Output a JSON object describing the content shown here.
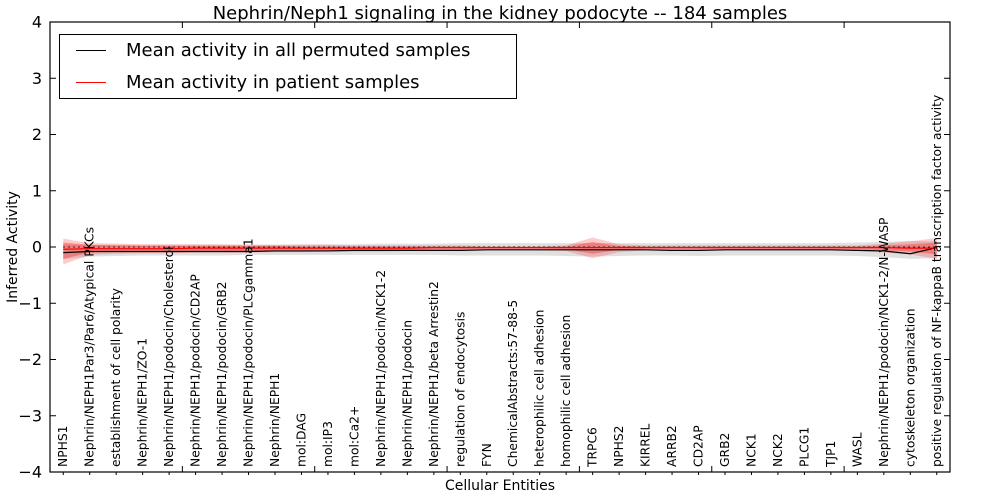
{
  "figure": {
    "title": "Nephrin/Neph1 signaling in the kidney podocyte -- 184 samples",
    "xlabel": "Cellular Entities",
    "ylabel": "Inferred Activity"
  },
  "legend": {
    "items": [
      {
        "label": "Mean activity in all permuted samples",
        "color": "#000000"
      },
      {
        "label": "Mean activity in patient samples",
        "color": "#ff0000"
      }
    ]
  },
  "chart_data": {
    "type": "line",
    "title": "Nephrin/Neph1 signaling in the kidney podocyte -- 184 samples",
    "xlabel": "Cellular Entities",
    "ylabel": "Inferred Activity",
    "ylim": [
      -4,
      4
    ],
    "yticks": [
      4,
      3,
      2,
      1,
      0,
      -1,
      -2,
      -3,
      -4
    ],
    "xticks_major": [
      0,
      5,
      10,
      15,
      20,
      25,
      30
    ],
    "grid": false,
    "legend_position": "upper left",
    "zero_line": 0,
    "zero_line_style": "dotted",
    "categories": [
      "NPHS1",
      "Nephrin/NEPH1Par3/Par6/Atypical PKCs",
      "establishment of cell polarity",
      "Nephrin/NEPH1/ZO-1",
      "Nephrin/NEPH1/podocin/Cholesterol",
      "Nephrin/NEPH1/podocin/CD2AP",
      "Nephrin/NEPH1/podocin/GRB2",
      "Nephrin/NEPH1/podocin/PLCgamma1",
      "Nephrin/NEPH1",
      "mol:DAG",
      "mol:IP3",
      "mol:Ca2+",
      "Nephrin/NEPH1/podocin/NCK1-2",
      "Nephrin/NEPH1/podocin",
      "Nephrin/NEPH1/beta Arrestin2",
      "regulation of endocytosis",
      "FYN",
      "ChemicalAbstracts:57-88-5",
      "heterophilic cell adhesion",
      "homophilic cell adhesion",
      "TRPC6",
      "NPHS2",
      "KIRREL",
      "ARRB2",
      "CD2AP",
      "GRB2",
      "NCK1",
      "NCK2",
      "PLCG1",
      "TJP1",
      "WASL",
      "Nephrin/NEPH1/podocin/NCK1-2/N-WASP",
      "cytoskeleton organization",
      "positive regulation of NF-kappaB transcription factor activity"
    ],
    "series": [
      {
        "name": "Mean activity in all permuted samples",
        "color": "#000000",
        "values": [
          -0.1,
          -0.08,
          -0.08,
          -0.08,
          -0.08,
          -0.08,
          -0.08,
          -0.08,
          -0.07,
          -0.07,
          -0.07,
          -0.06,
          -0.06,
          -0.06,
          -0.06,
          -0.06,
          -0.05,
          -0.05,
          -0.05,
          -0.05,
          -0.05,
          -0.05,
          -0.05,
          -0.06,
          -0.06,
          -0.05,
          -0.05,
          -0.05,
          -0.05,
          -0.05,
          -0.06,
          -0.07,
          -0.12,
          -0.01
        ]
      },
      {
        "name": "Mean activity in patient samples",
        "color": "#ff0000",
        "values": [
          -0.04,
          -0.03,
          -0.03,
          -0.03,
          -0.03,
          -0.02,
          -0.02,
          -0.02,
          -0.02,
          -0.02,
          -0.02,
          -0.02,
          -0.02,
          -0.02,
          -0.01,
          -0.01,
          -0.01,
          -0.01,
          -0.01,
          -0.01,
          -0.01,
          -0.01,
          -0.01,
          -0.01,
          -0.01,
          -0.01,
          -0.01,
          -0.01,
          -0.01,
          -0.01,
          -0.01,
          -0.01,
          -0.02,
          -0.02
        ]
      }
    ],
    "bands": [
      {
        "name": "permuted-samples-range",
        "color": "#bbbbbb",
        "opacity": 0.45,
        "upper": [
          0.05,
          0.04,
          0.04,
          0.04,
          0.04,
          0.04,
          0.04,
          0.04,
          0.04,
          0.05,
          0.05,
          0.05,
          0.06,
          0.06,
          0.06,
          0.07,
          0.07,
          0.07,
          0.07,
          0.07,
          0.07,
          0.07,
          0.07,
          0.07,
          0.07,
          0.07,
          0.07,
          0.07,
          0.07,
          0.07,
          0.08,
          0.09,
          0.11,
          0.1
        ],
        "lower": [
          -0.22,
          -0.17,
          -0.16,
          -0.15,
          -0.15,
          -0.15,
          -0.15,
          -0.14,
          -0.14,
          -0.14,
          -0.14,
          -0.14,
          -0.14,
          -0.14,
          -0.14,
          -0.15,
          -0.15,
          -0.15,
          -0.15,
          -0.16,
          -0.17,
          -0.16,
          -0.15,
          -0.15,
          -0.16,
          -0.15,
          -0.15,
          -0.15,
          -0.15,
          -0.15,
          -0.16,
          -0.18,
          -0.21,
          -0.2
        ]
      },
      {
        "name": "patient-samples-range-outer",
        "color": "#ff0000",
        "opacity": 0.2,
        "upper": [
          0.15,
          0.07,
          0.06,
          0.05,
          0.05,
          0.05,
          0.05,
          0.04,
          0.04,
          0.04,
          0.04,
          0.03,
          0.03,
          0.03,
          0.03,
          0.03,
          0.02,
          0.02,
          0.02,
          0.03,
          0.17,
          0.05,
          0.03,
          0.03,
          0.03,
          0.03,
          0.03,
          0.03,
          0.03,
          0.03,
          0.03,
          0.06,
          0.1,
          0.16
        ],
        "lower": [
          -0.31,
          -0.14,
          -0.12,
          -0.11,
          -0.11,
          -0.1,
          -0.1,
          -0.1,
          -0.09,
          -0.09,
          -0.08,
          -0.08,
          -0.08,
          -0.07,
          -0.07,
          -0.07,
          -0.06,
          -0.06,
          -0.06,
          -0.07,
          -0.2,
          -0.09,
          -0.06,
          -0.06,
          -0.06,
          -0.06,
          -0.06,
          -0.06,
          -0.06,
          -0.06,
          -0.07,
          -0.1,
          -0.13,
          -0.21
        ]
      },
      {
        "name": "patient-samples-range-inner",
        "color": "#ff0000",
        "opacity": 0.3,
        "upper": [
          0.08,
          0.04,
          0.03,
          0.02,
          0.02,
          0.02,
          0.02,
          0.02,
          0.02,
          0.01,
          0.01,
          0.01,
          0.01,
          0.01,
          0.01,
          0.01,
          0.0,
          0.0,
          0.0,
          0.01,
          0.09,
          0.02,
          0.01,
          0.01,
          0.01,
          0.01,
          0.01,
          0.01,
          0.01,
          0.01,
          0.01,
          0.03,
          0.05,
          0.08
        ],
        "lower": [
          -0.21,
          -0.1,
          -0.08,
          -0.08,
          -0.07,
          -0.07,
          -0.07,
          -0.07,
          -0.06,
          -0.06,
          -0.06,
          -0.05,
          -0.05,
          -0.05,
          -0.04,
          -0.04,
          -0.03,
          -0.03,
          -0.03,
          -0.04,
          -0.12,
          -0.05,
          -0.03,
          -0.03,
          -0.03,
          -0.03,
          -0.03,
          -0.03,
          -0.03,
          -0.03,
          -0.04,
          -0.06,
          -0.08,
          -0.13
        ]
      }
    ]
  }
}
